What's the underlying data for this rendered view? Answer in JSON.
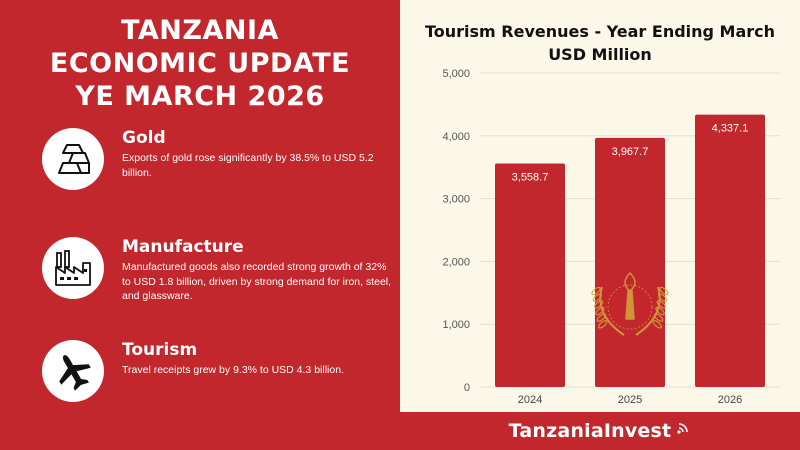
{
  "header": {
    "line1": "TANZANIA",
    "line2": "ECONOMIC UPDATE",
    "line3": "YE MARCH 2026"
  },
  "items": [
    {
      "title": "Gold",
      "text": "Exports of gold rose significantly by 38.5% to USD 5.2 billion.",
      "icon": "gold-bars-icon"
    },
    {
      "title": "Manufacture",
      "text": "Manufactured goods also recorded strong growth of 32% to USD 1.8 billion, driven by strong demand for iron, steel, and glassware.",
      "icon": "factory-icon"
    },
    {
      "title": "Tourism",
      "text": "Travel receipts grew by 9.3% to  USD 4.3 billion.",
      "icon": "airplane-icon"
    }
  ],
  "chart_data": {
    "type": "bar",
    "title_line1": "Tourism Revenues - Year Ending March",
    "title_line2": "USD Million",
    "categories": [
      "2024",
      "2025",
      "2026"
    ],
    "values": [
      3558.7,
      3967.7,
      4337.1
    ],
    "value_labels": [
      "3,558.7",
      "3,967.7",
      "4,337.1"
    ],
    "ylim": [
      0,
      5000
    ],
    "yticks": [
      0,
      1000,
      2000,
      3000,
      4000,
      5000
    ],
    "ytick_labels": [
      "0",
      "1,000",
      "2,000",
      "3,000",
      "4,000",
      "5,000"
    ],
    "grid": true,
    "bar_color": "#c1272d"
  },
  "footer": {
    "brand": "TanzaniaInvest"
  },
  "colors": {
    "red": "#c1272d",
    "cream": "#fbf8e9",
    "gold": "#d4a73a"
  }
}
